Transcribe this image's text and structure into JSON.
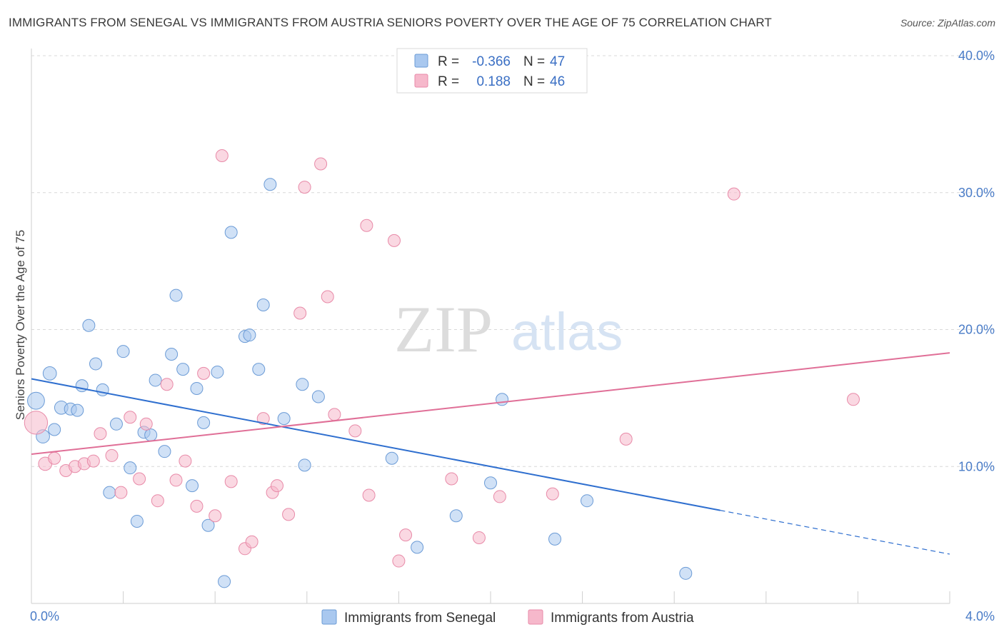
{
  "title": "IMMIGRANTS FROM SENEGAL VS IMMIGRANTS FROM AUSTRIA SENIORS POVERTY OVER THE AGE OF 75 CORRELATION CHART",
  "source": "Source: ZipAtlas.com",
  "watermark": {
    "zip": "ZIP",
    "atlas": "atlas"
  },
  "legend_box": [
    {
      "r_label": "R =",
      "r_value": "-0.366",
      "n_label": "N =",
      "n_value": "47",
      "color": "#a9c8ef",
      "stroke": "#6b9bd6"
    },
    {
      "r_label": "R =",
      "r_value": "0.188",
      "n_label": "N =",
      "n_value": "46",
      "color": "#f6b8cb",
      "stroke": "#e88aa8"
    }
  ],
  "bottom_legend": [
    {
      "label": "Immigrants from Senegal",
      "color": "#a9c8ef",
      "stroke": "#6b9bd6"
    },
    {
      "label": "Immigrants from Austria",
      "color": "#f6b8cb",
      "stroke": "#e88aa8"
    }
  ],
  "chart_data": {
    "type": "scatter",
    "title": "IMMIGRANTS FROM SENEGAL VS IMMIGRANTS FROM AUSTRIA SENIORS POVERTY OVER THE AGE OF 75 CORRELATION CHART",
    "xlabel": "",
    "ylabel": "Seniors Poverty Over the Age of 75",
    "xlim": [
      0,
      4.0
    ],
    "ylim": [
      0,
      40.0
    ],
    "x_tick_labels": [
      "0.0%",
      "4.0%"
    ],
    "y_ticks": [
      10,
      20,
      30,
      40
    ],
    "y_tick_labels": [
      "10.0%",
      "20.0%",
      "30.0%",
      "40.0%"
    ],
    "grid": true,
    "series": [
      {
        "name": "Immigrants from Senegal",
        "color": "#a9c8ef",
        "stroke": "#6b9bd6",
        "trend_color": "#2f6fcf",
        "trend": {
          "x0": 0.0,
          "y0": 16.4,
          "x1": 3.0,
          "y1": 6.8,
          "dash_to_x": 4.0,
          "dash_to_y": 3.6
        },
        "points": [
          {
            "x": 0.02,
            "y": 14.8,
            "s": 1.4
          },
          {
            "x": 0.05,
            "y": 12.2,
            "s": 1.1
          },
          {
            "x": 0.08,
            "y": 16.8,
            "s": 1.1
          },
          {
            "x": 0.1,
            "y": 12.7,
            "s": 1.0
          },
          {
            "x": 0.13,
            "y": 14.3,
            "s": 1.1
          },
          {
            "x": 0.17,
            "y": 14.2,
            "s": 1.0
          },
          {
            "x": 0.2,
            "y": 14.1,
            "s": 1.0
          },
          {
            "x": 0.22,
            "y": 15.9,
            "s": 1.0
          },
          {
            "x": 0.25,
            "y": 20.3,
            "s": 1.0
          },
          {
            "x": 0.28,
            "y": 17.5,
            "s": 1.0
          },
          {
            "x": 0.31,
            "y": 15.6,
            "s": 1.0
          },
          {
            "x": 0.34,
            "y": 8.1,
            "s": 1.0
          },
          {
            "x": 0.37,
            "y": 13.1,
            "s": 1.0
          },
          {
            "x": 0.4,
            "y": 18.4,
            "s": 1.0
          },
          {
            "x": 0.43,
            "y": 9.9,
            "s": 1.0
          },
          {
            "x": 0.46,
            "y": 6.0,
            "s": 1.0
          },
          {
            "x": 0.49,
            "y": 12.5,
            "s": 1.0
          },
          {
            "x": 0.52,
            "y": 12.3,
            "s": 1.0
          },
          {
            "x": 0.54,
            "y": 16.3,
            "s": 1.0
          },
          {
            "x": 0.58,
            "y": 11.1,
            "s": 1.0
          },
          {
            "x": 0.61,
            "y": 18.2,
            "s": 1.0
          },
          {
            "x": 0.63,
            "y": 22.5,
            "s": 1.0
          },
          {
            "x": 0.66,
            "y": 17.1,
            "s": 1.0
          },
          {
            "x": 0.7,
            "y": 8.6,
            "s": 1.0
          },
          {
            "x": 0.72,
            "y": 15.7,
            "s": 1.0
          },
          {
            "x": 0.75,
            "y": 13.2,
            "s": 1.0
          },
          {
            "x": 0.77,
            "y": 5.7,
            "s": 1.0
          },
          {
            "x": 0.81,
            "y": 16.9,
            "s": 1.0
          },
          {
            "x": 0.84,
            "y": 1.6,
            "s": 1.0
          },
          {
            "x": 0.87,
            "y": 27.1,
            "s": 1.0
          },
          {
            "x": 0.93,
            "y": 19.5,
            "s": 1.0
          },
          {
            "x": 0.95,
            "y": 19.6,
            "s": 1.0
          },
          {
            "x": 0.99,
            "y": 17.1,
            "s": 1.0
          },
          {
            "x": 1.01,
            "y": 21.8,
            "s": 1.0
          },
          {
            "x": 1.04,
            "y": 30.6,
            "s": 1.0
          },
          {
            "x": 1.1,
            "y": 13.5,
            "s": 1.0
          },
          {
            "x": 1.18,
            "y": 16.0,
            "s": 1.0
          },
          {
            "x": 1.19,
            "y": 10.1,
            "s": 1.0
          },
          {
            "x": 1.25,
            "y": 15.1,
            "s": 1.0
          },
          {
            "x": 1.57,
            "y": 10.6,
            "s": 1.0
          },
          {
            "x": 1.68,
            "y": 4.1,
            "s": 1.0
          },
          {
            "x": 1.85,
            "y": 6.4,
            "s": 1.0
          },
          {
            "x": 2.0,
            "y": 8.8,
            "s": 1.0
          },
          {
            "x": 2.05,
            "y": 14.9,
            "s": 1.0
          },
          {
            "x": 2.28,
            "y": 4.7,
            "s": 1.0
          },
          {
            "x": 2.42,
            "y": 7.5,
            "s": 1.0
          },
          {
            "x": 2.85,
            "y": 2.2,
            "s": 1.0
          }
        ]
      },
      {
        "name": "Immigrants from Austria",
        "color": "#f6b8cb",
        "stroke": "#e88aa8",
        "trend_color": "#e06f97",
        "trend": {
          "x0": 0.0,
          "y0": 10.9,
          "x1": 4.0,
          "y1": 18.3
        },
        "points": [
          {
            "x": 0.02,
            "y": 13.2,
            "s": 1.9
          },
          {
            "x": 0.06,
            "y": 10.2,
            "s": 1.1
          },
          {
            "x": 0.1,
            "y": 10.6,
            "s": 1.0
          },
          {
            "x": 0.15,
            "y": 9.7,
            "s": 1.0
          },
          {
            "x": 0.19,
            "y": 10.0,
            "s": 1.0
          },
          {
            "x": 0.23,
            "y": 10.2,
            "s": 1.0
          },
          {
            "x": 0.27,
            "y": 10.4,
            "s": 1.0
          },
          {
            "x": 0.3,
            "y": 12.4,
            "s": 1.0
          },
          {
            "x": 0.35,
            "y": 10.8,
            "s": 1.0
          },
          {
            "x": 0.39,
            "y": 8.1,
            "s": 1.0
          },
          {
            "x": 0.43,
            "y": 13.6,
            "s": 1.0
          },
          {
            "x": 0.47,
            "y": 9.1,
            "s": 1.0
          },
          {
            "x": 0.5,
            "y": 13.1,
            "s": 1.0
          },
          {
            "x": 0.55,
            "y": 7.5,
            "s": 1.0
          },
          {
            "x": 0.59,
            "y": 16.0,
            "s": 1.0
          },
          {
            "x": 0.63,
            "y": 9.0,
            "s": 1.0
          },
          {
            "x": 0.67,
            "y": 10.4,
            "s": 1.0
          },
          {
            "x": 0.72,
            "y": 7.1,
            "s": 1.0
          },
          {
            "x": 0.75,
            "y": 16.8,
            "s": 1.0
          },
          {
            "x": 0.8,
            "y": 6.4,
            "s": 1.0
          },
          {
            "x": 0.83,
            "y": 32.7,
            "s": 1.0
          },
          {
            "x": 0.87,
            "y": 8.9,
            "s": 1.0
          },
          {
            "x": 0.93,
            "y": 4.0,
            "s": 1.0
          },
          {
            "x": 0.96,
            "y": 4.5,
            "s": 1.0
          },
          {
            "x": 1.01,
            "y": 13.5,
            "s": 1.0
          },
          {
            "x": 1.05,
            "y": 8.1,
            "s": 1.0
          },
          {
            "x": 1.07,
            "y": 8.6,
            "s": 1.0
          },
          {
            "x": 1.12,
            "y": 6.5,
            "s": 1.0
          },
          {
            "x": 1.17,
            "y": 21.2,
            "s": 1.0
          },
          {
            "x": 1.19,
            "y": 30.4,
            "s": 1.0
          },
          {
            "x": 1.26,
            "y": 32.1,
            "s": 1.0
          },
          {
            "x": 1.29,
            "y": 22.4,
            "s": 1.0
          },
          {
            "x": 1.32,
            "y": 13.8,
            "s": 1.0
          },
          {
            "x": 1.41,
            "y": 12.6,
            "s": 1.0
          },
          {
            "x": 1.46,
            "y": 27.6,
            "s": 1.0
          },
          {
            "x": 1.47,
            "y": 7.9,
            "s": 1.0
          },
          {
            "x": 1.58,
            "y": 26.5,
            "s": 1.0
          },
          {
            "x": 1.6,
            "y": 3.1,
            "s": 1.0
          },
          {
            "x": 1.63,
            "y": 5.0,
            "s": 1.0
          },
          {
            "x": 1.83,
            "y": 9.1,
            "s": 1.0
          },
          {
            "x": 1.95,
            "y": 4.8,
            "s": 1.0
          },
          {
            "x": 2.04,
            "y": 7.8,
            "s": 1.0
          },
          {
            "x": 2.27,
            "y": 8.0,
            "s": 1.0
          },
          {
            "x": 2.59,
            "y": 12.0,
            "s": 1.0
          },
          {
            "x": 3.06,
            "y": 29.9,
            "s": 1.0
          },
          {
            "x": 3.58,
            "y": 14.9,
            "s": 1.0
          }
        ]
      }
    ]
  }
}
